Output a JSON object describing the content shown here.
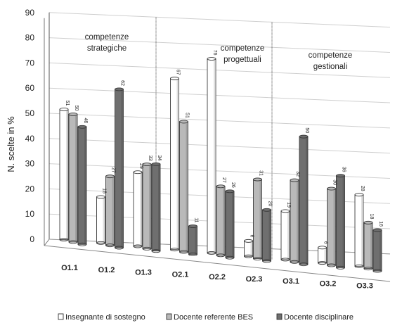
{
  "chart_data": {
    "type": "bar",
    "ylabel": "N. scelte in %",
    "ylim": [
      0,
      90
    ],
    "yticks": [
      0,
      10,
      20,
      30,
      40,
      50,
      60,
      70,
      80,
      90
    ],
    "grid": true,
    "legend_position": "bottom",
    "categories": [
      "O1.1",
      "O1.2",
      "O1.3",
      "O2.1",
      "O2.2",
      "O2.3",
      "O3.1",
      "O3.2",
      "O3.3"
    ],
    "series": [
      {
        "name": "Insegnante di sostegno",
        "color": "#ffffff",
        "values": [
          51,
          18,
          29,
          67,
          76,
          6,
          19,
          6,
          28
        ]
      },
      {
        "name": "Docente referente BES",
        "color": "#b9b9b9",
        "values": [
          50,
          27,
          33,
          51,
          27,
          31,
          32,
          30,
          18
        ]
      },
      {
        "name": "Docente disciplinare",
        "color": "#6f6f6f",
        "values": [
          46,
          62,
          34,
          11,
          26,
          20,
          50,
          36,
          16
        ]
      }
    ],
    "annotations": [
      {
        "group": 1,
        "lines": [
          "competenze",
          "strategiche"
        ]
      },
      {
        "group": 2,
        "lines": [
          "competenze",
          "progettuali"
        ]
      },
      {
        "group": 3,
        "lines": [
          "competenze",
          "gestionali"
        ]
      }
    ]
  }
}
